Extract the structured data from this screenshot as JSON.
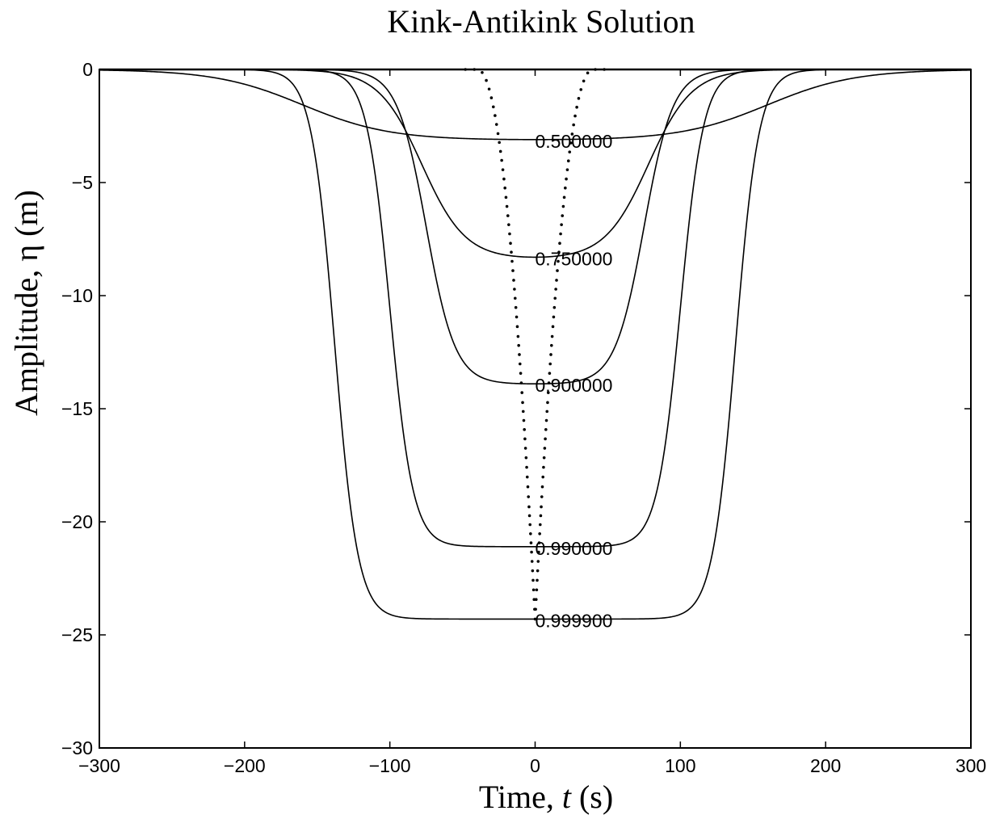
{
  "chart_data": {
    "type": "line",
    "title": "Kink-Antikink Solution",
    "xlabel_prefix": "Time, ",
    "xlabel_var": "t",
    "xlabel_suffix": " (s)",
    "ylabel": "Amplitude, η (m)",
    "xlim": [
      -300,
      300
    ],
    "ylim": [
      -30,
      0
    ],
    "xticks": [
      -300,
      -200,
      -100,
      0,
      100,
      200,
      300
    ],
    "xtick_labels": [
      "−300",
      "−200",
      "−100",
      "0",
      "100",
      "200",
      "300"
    ],
    "yticks": [
      0,
      -5,
      -10,
      -15,
      -20,
      -25,
      -30
    ],
    "ytick_labels": [
      "0",
      "−5",
      "−10",
      "−15",
      "−20",
      "−25",
      "−30"
    ],
    "grid": false,
    "legend": "none",
    "series": [
      {
        "label": "0.500000",
        "amplitude": -3.1,
        "center_halfwidth": 160,
        "kink_width": 60
      },
      {
        "label": "0.750000",
        "amplitude": -8.3,
        "center_halfwidth": 78,
        "kink_width": 30
      },
      {
        "label": "0.900000",
        "amplitude": -13.9,
        "center_halfwidth": 75,
        "kink_width": 20
      },
      {
        "label": "0.990000",
        "amplitude": -21.1,
        "center_halfwidth": 100,
        "kink_width": 16
      },
      {
        "label": "0.999900",
        "amplitude": -24.3,
        "center_halfwidth": 138,
        "kink_width": 16
      }
    ],
    "dotted_series": {
      "style": "dotted",
      "amplitude": -24.3,
      "half_width_at_top": 40
    }
  }
}
